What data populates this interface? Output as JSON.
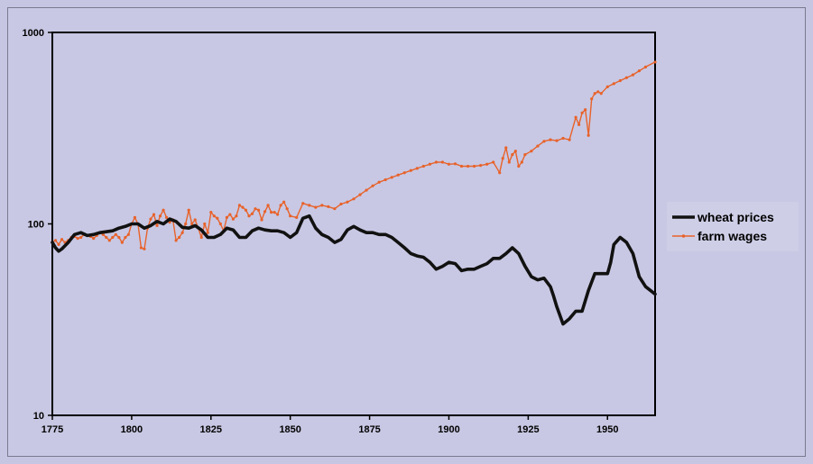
{
  "colors": {
    "background": "#c6c6e2",
    "wheat": "#111111",
    "wages": "#e8622a",
    "axis": "#000000"
  },
  "chart_data": {
    "type": "line",
    "title": "",
    "xlabel": "",
    "ylabel": "",
    "xlim": [
      1775,
      1965
    ],
    "ylim": [
      10,
      1000
    ],
    "yscale": "log",
    "xticks": [
      1775,
      1800,
      1825,
      1850,
      1875,
      1900,
      1925,
      1950
    ],
    "yticks": [
      10,
      100,
      1000
    ],
    "xtick_labels": [
      "1775",
      "1800",
      "1825",
      "1850",
      "1875",
      "1900",
      "1925",
      "1950"
    ],
    "ytick_labels": [
      "10",
      "100",
      "1000"
    ],
    "grid": false,
    "legend_position": "right",
    "series": [
      {
        "name": "wheat prices",
        "color": "#111111",
        "style": "thick-line",
        "x": [
          1775,
          1776,
          1777,
          1778,
          1780,
          1782,
          1784,
          1786,
          1788,
          1790,
          1792,
          1794,
          1796,
          1798,
          1800,
          1802,
          1804,
          1806,
          1808,
          1810,
          1812,
          1814,
          1816,
          1818,
          1820,
          1822,
          1824,
          1826,
          1828,
          1830,
          1832,
          1834,
          1836,
          1838,
          1840,
          1842,
          1844,
          1846,
          1848,
          1850,
          1852,
          1854,
          1856,
          1858,
          1860,
          1862,
          1864,
          1866,
          1868,
          1870,
          1872,
          1874,
          1876,
          1878,
          1880,
          1882,
          1884,
          1886,
          1888,
          1890,
          1892,
          1894,
          1896,
          1898,
          1900,
          1902,
          1904,
          1906,
          1908,
          1910,
          1912,
          1914,
          1916,
          1918,
          1920,
          1922,
          1924,
          1926,
          1928,
          1930,
          1932,
          1933,
          1934,
          1936,
          1938,
          1940,
          1942,
          1944,
          1946,
          1948,
          1950,
          1951,
          1952,
          1954,
          1956,
          1958,
          1960,
          1962,
          1965
        ],
        "y": [
          80,
          75,
          72,
          74,
          80,
          88,
          90,
          87,
          88,
          90,
          91,
          92,
          95,
          97,
          100,
          100,
          95,
          98,
          103,
          100,
          106,
          103,
          96,
          95,
          98,
          93,
          85,
          85,
          88,
          95,
          93,
          85,
          85,
          92,
          95,
          93,
          92,
          92,
          90,
          85,
          90,
          107,
          110,
          95,
          88,
          85,
          80,
          83,
          93,
          97,
          93,
          90,
          90,
          88,
          88,
          85,
          80,
          75,
          70,
          68,
          67,
          63,
          58,
          60,
          63,
          62,
          57,
          58,
          58,
          60,
          62,
          66,
          66,
          70,
          75,
          70,
          60,
          53,
          51,
          52,
          47,
          42,
          37,
          30,
          32,
          35,
          35,
          45,
          55,
          55,
          55,
          63,
          78,
          85,
          80,
          70,
          53,
          47,
          43
        ]
      },
      {
        "name": "farm wages",
        "color": "#e8622a",
        "style": "thin-line-markers",
        "x": [
          1775,
          1776,
          1777,
          1778,
          1779,
          1780,
          1781,
          1782,
          1783,
          1784,
          1785,
          1786,
          1787,
          1788,
          1789,
          1790,
          1791,
          1792,
          1793,
          1794,
          1795,
          1796,
          1797,
          1798,
          1799,
          1800,
          1801,
          1802,
          1803,
          1804,
          1805,
          1806,
          1807,
          1808,
          1809,
          1810,
          1811,
          1812,
          1813,
          1814,
          1815,
          1816,
          1817,
          1818,
          1819,
          1820,
          1821,
          1822,
          1823,
          1824,
          1825,
          1826,
          1827,
          1828,
          1829,
          1830,
          1831,
          1832,
          1833,
          1834,
          1835,
          1836,
          1837,
          1838,
          1839,
          1840,
          1841,
          1842,
          1843,
          1844,
          1845,
          1846,
          1847,
          1848,
          1849,
          1850,
          1852,
          1854,
          1856,
          1858,
          1860,
          1862,
          1864,
          1866,
          1868,
          1870,
          1872,
          1874,
          1876,
          1878,
          1880,
          1882,
          1884,
          1886,
          1888,
          1890,
          1892,
          1894,
          1896,
          1898,
          1900,
          1902,
          1904,
          1906,
          1908,
          1910,
          1912,
          1914,
          1916,
          1917,
          1918,
          1919,
          1920,
          1921,
          1922,
          1923,
          1924,
          1926,
          1928,
          1930,
          1932,
          1934,
          1936,
          1938,
          1940,
          1941,
          1942,
          1943,
          1944,
          1945,
          1946,
          1947,
          1948,
          1950,
          1952,
          1954,
          1956,
          1958,
          1960,
          1962,
          1965
        ],
        "y": [
          80,
          82,
          78,
          83,
          80,
          82,
          85,
          86,
          84,
          85,
          88,
          87,
          86,
          84,
          87,
          90,
          88,
          85,
          82,
          85,
          88,
          85,
          80,
          85,
          88,
          100,
          108,
          100,
          75,
          74,
          95,
          106,
          112,
          98,
          110,
          118,
          108,
          102,
          105,
          82,
          85,
          90,
          100,
          118,
          100,
          105,
          95,
          85,
          100,
          90,
          115,
          110,
          107,
          100,
          92,
          108,
          112,
          106,
          110,
          125,
          122,
          118,
          110,
          113,
          120,
          118,
          105,
          116,
          125,
          115,
          115,
          112,
          125,
          130,
          120,
          110,
          108,
          128,
          125,
          122,
          125,
          123,
          120,
          127,
          130,
          135,
          142,
          150,
          158,
          165,
          170,
          175,
          180,
          185,
          190,
          195,
          200,
          205,
          210,
          210,
          205,
          206,
          200,
          200,
          200,
          202,
          205,
          210,
          185,
          220,
          250,
          210,
          230,
          240,
          200,
          210,
          230,
          240,
          255,
          270,
          275,
          272,
          280,
          275,
          360,
          330,
          380,
          395,
          290,
          450,
          480,
          490,
          480,
          520,
          540,
          560,
          580,
          600,
          630,
          660,
          700
        ]
      }
    ]
  }
}
